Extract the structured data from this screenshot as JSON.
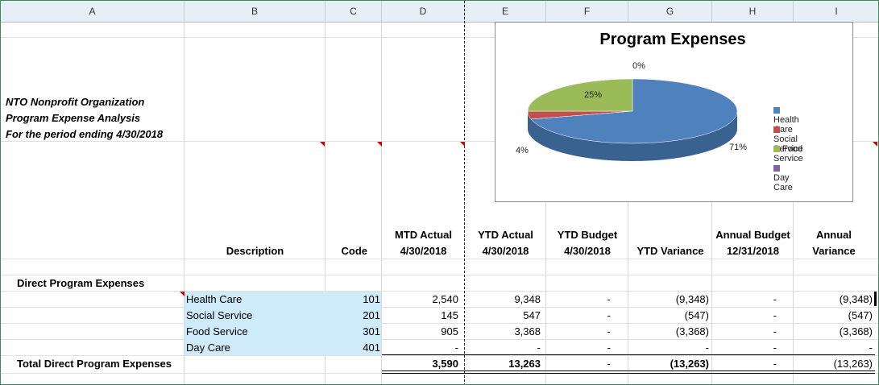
{
  "columns": [
    "A",
    "B",
    "C",
    "D",
    "E",
    "F",
    "G",
    "H",
    "I"
  ],
  "report": {
    "line1": "NTO Nonprofit Organization",
    "line2": "Program Expense Analysis",
    "line3": "For the period ending 4/30/2018"
  },
  "headers": {
    "description": "Description",
    "code": "Code",
    "mtd_actual": "MTD Actual",
    "mtd_actual_date": "4/30/2018",
    "ytd_actual": "YTD Actual",
    "ytd_actual_date": "4/30/2018",
    "ytd_budget": "YTD Budget",
    "ytd_budget_date": "4/30/2018",
    "ytd_variance": "YTD Variance",
    "annual_budget": "Annual Budget",
    "annual_budget_date": "12/31/2018",
    "annual_variance_1": "Annual",
    "annual_variance_2": "Variance"
  },
  "section_label": "Direct Program Expenses",
  "rows": [
    {
      "desc": "Health Care",
      "code": "101",
      "mtd": "2,540",
      "ytd": "9,348",
      "budget": "-",
      "var": "(9,348)",
      "annual": "-",
      "avar": "(9,348)"
    },
    {
      "desc": "Social Service",
      "code": "201",
      "mtd": "145",
      "ytd": "547",
      "budget": "-",
      "var": "(547)",
      "annual": "-",
      "avar": "(547)"
    },
    {
      "desc": "Food Service",
      "code": "301",
      "mtd": "905",
      "ytd": "3,368",
      "budget": "-",
      "var": "(3,368)",
      "annual": "-",
      "avar": "(3,368)"
    },
    {
      "desc": "Day Care",
      "code": "401",
      "mtd": "-",
      "ytd": "-",
      "budget": "-",
      "var": "-",
      "annual": "-",
      "avar": "-"
    }
  ],
  "total": {
    "label": "Total Direct Program Expenses",
    "mtd": "3,590",
    "ytd": "13,263",
    "budget": "-",
    "var": "(13,263)",
    "annual": "-",
    "avar": "(13,263)"
  },
  "chart_data": {
    "type": "pie",
    "title": "Program Expenses",
    "categories": [
      "Health Care",
      "Social Service",
      "Food Service",
      "Day Care"
    ],
    "values": [
      71,
      4,
      25,
      0
    ],
    "labels": [
      "71%",
      "4%",
      "25%",
      "0%"
    ],
    "colors": [
      "#4f81bd",
      "#c0504d",
      "#9bbb59",
      "#8064a2"
    ],
    "legend": "right"
  }
}
